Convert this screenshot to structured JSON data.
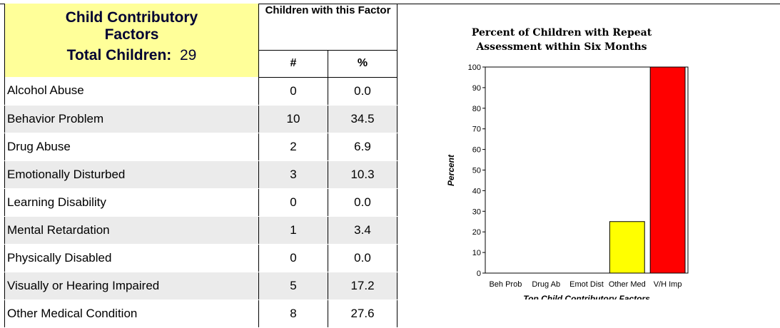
{
  "table": {
    "title_line1": "Child Contributory",
    "title_line2": "Factors",
    "total_label": "Total Children:",
    "total_value": "29",
    "group_header": "Children with this Factor",
    "col_count": "#",
    "col_pct": "%",
    "rows": [
      {
        "name": "Alcohol Abuse",
        "count": "0",
        "pct": "0.0"
      },
      {
        "name": "Behavior Problem",
        "count": "10",
        "pct": "34.5"
      },
      {
        "name": "Drug Abuse",
        "count": "2",
        "pct": "6.9"
      },
      {
        "name": "Emotionally Disturbed",
        "count": "3",
        "pct": "10.3"
      },
      {
        "name": "Learning Disability",
        "count": "0",
        "pct": "0.0"
      },
      {
        "name": "Mental Retardation",
        "count": "1",
        "pct": "3.4"
      },
      {
        "name": "Physically Disabled",
        "count": "0",
        "pct": "0.0"
      },
      {
        "name": "Visually or Hearing Impaired",
        "count": "5",
        "pct": "17.2"
      },
      {
        "name": "Other Medical Condition",
        "count": "8",
        "pct": "27.6"
      }
    ],
    "shade_color": "#ebebeb",
    "header_color": "#ffff99"
  },
  "chart_data": {
    "type": "bar",
    "title_line1": "Percent of Children with Repeat",
    "title_line2": "Assessment within Six Months",
    "categories": [
      "Beh Prob",
      "Drug Ab",
      "Emot Dist",
      "Other Med",
      "V/H Imp"
    ],
    "values": [
      0,
      0,
      0,
      25,
      100
    ],
    "colors": [
      "#ffff00",
      "#ffff00",
      "#ffff00",
      "#ffff00",
      "#ff0000"
    ],
    "xlabel": "Top Child Contributory Factors",
    "ylabel": "Percent",
    "ylim": [
      0,
      100
    ],
    "yticks": [
      0,
      10,
      20,
      30,
      40,
      50,
      60,
      70,
      80,
      90,
      100
    ],
    "grid": false,
    "legend": "none"
  }
}
